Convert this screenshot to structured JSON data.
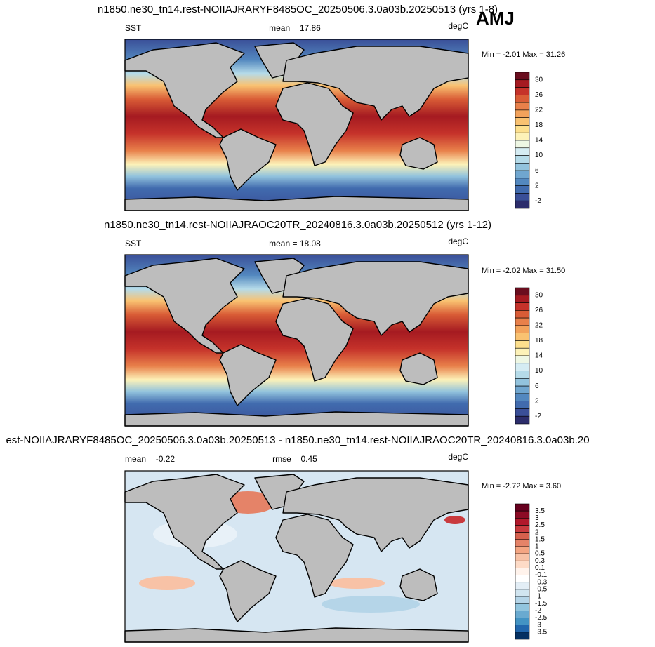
{
  "figure_label": "AMJ",
  "panels": [
    {
      "title": "n1850.ne30_tn14.rest-NOIIAJRARYF8485OC_20250506.3.0a03b.20250513 (yrs 1-8)",
      "left_label": "SST",
      "center_label": "mean =  17.86",
      "right_label": "degC",
      "range_text": "Min =  -2.01 Max =  31.26",
      "colorbar": {
        "labels": [
          30,
          26,
          22,
          18,
          14,
          10,
          6,
          2,
          -2
        ],
        "colors": [
          "#6a0d1e",
          "#a51a21",
          "#c5322a",
          "#d95c36",
          "#e8804a",
          "#f2a25b",
          "#f9c271",
          "#fde08e",
          "#fdf2b8",
          "#eef7e4",
          "#d5ecf3",
          "#b5dbe9",
          "#92c3dd",
          "#70a6cf",
          "#5388bf",
          "#416bae",
          "#3a4f98",
          "#2c2d6b"
        ]
      }
    },
    {
      "title": "n1850.ne30_tn14.rest-NOIIAJRAOC20TR_20240816.3.0a03b.20250512 (yrs 1-12)",
      "left_label": "SST",
      "center_label": "mean =  18.08",
      "right_label": "degC",
      "range_text": "Min =  -2.02 Max =  31.50",
      "colorbar": {
        "labels": [
          30,
          26,
          22,
          18,
          14,
          10,
          6,
          2,
          -2
        ],
        "colors": [
          "#6a0d1e",
          "#a51a21",
          "#c5322a",
          "#d95c36",
          "#e8804a",
          "#f2a25b",
          "#f9c271",
          "#fde08e",
          "#fdf2b8",
          "#eef7e4",
          "#d5ecf3",
          "#b5dbe9",
          "#92c3dd",
          "#70a6cf",
          "#5388bf",
          "#416bae",
          "#3a4f98",
          "#2c2d6b"
        ]
      }
    },
    {
      "title": "est-NOIIAJRARYF8485OC_20250506.3.0a03b.20250513 - n1850.ne30_tn14.rest-NOIIAJRAOC20TR_20240816.3.0a03b.20",
      "left_label": "mean =  -0.22",
      "center_label": "rmse =   0.45",
      "right_label": "degC",
      "range_text": "Min =  -2.72 Max =   3.60",
      "colorbar": {
        "labels": [
          3.5,
          3,
          2.5,
          2,
          1.5,
          1,
          0.5,
          0.3,
          0.1,
          -0.1,
          -0.3,
          -0.5,
          -1,
          -1.5,
          -2,
          -2.5,
          -3,
          -3.5
        ],
        "colors": [
          "#67001f",
          "#8c0b25",
          "#b2182b",
          "#c93a3e",
          "#d6604d",
          "#e58368",
          "#f4a582",
          "#f8c2a6",
          "#fddbc7",
          "#fff3ec",
          "#ffffff",
          "#e3eef6",
          "#d1e5f0",
          "#b5d5e8",
          "#92c5de",
          "#6aaad0",
          "#4393c3",
          "#2166ac",
          "#053061"
        ]
      }
    }
  ]
}
